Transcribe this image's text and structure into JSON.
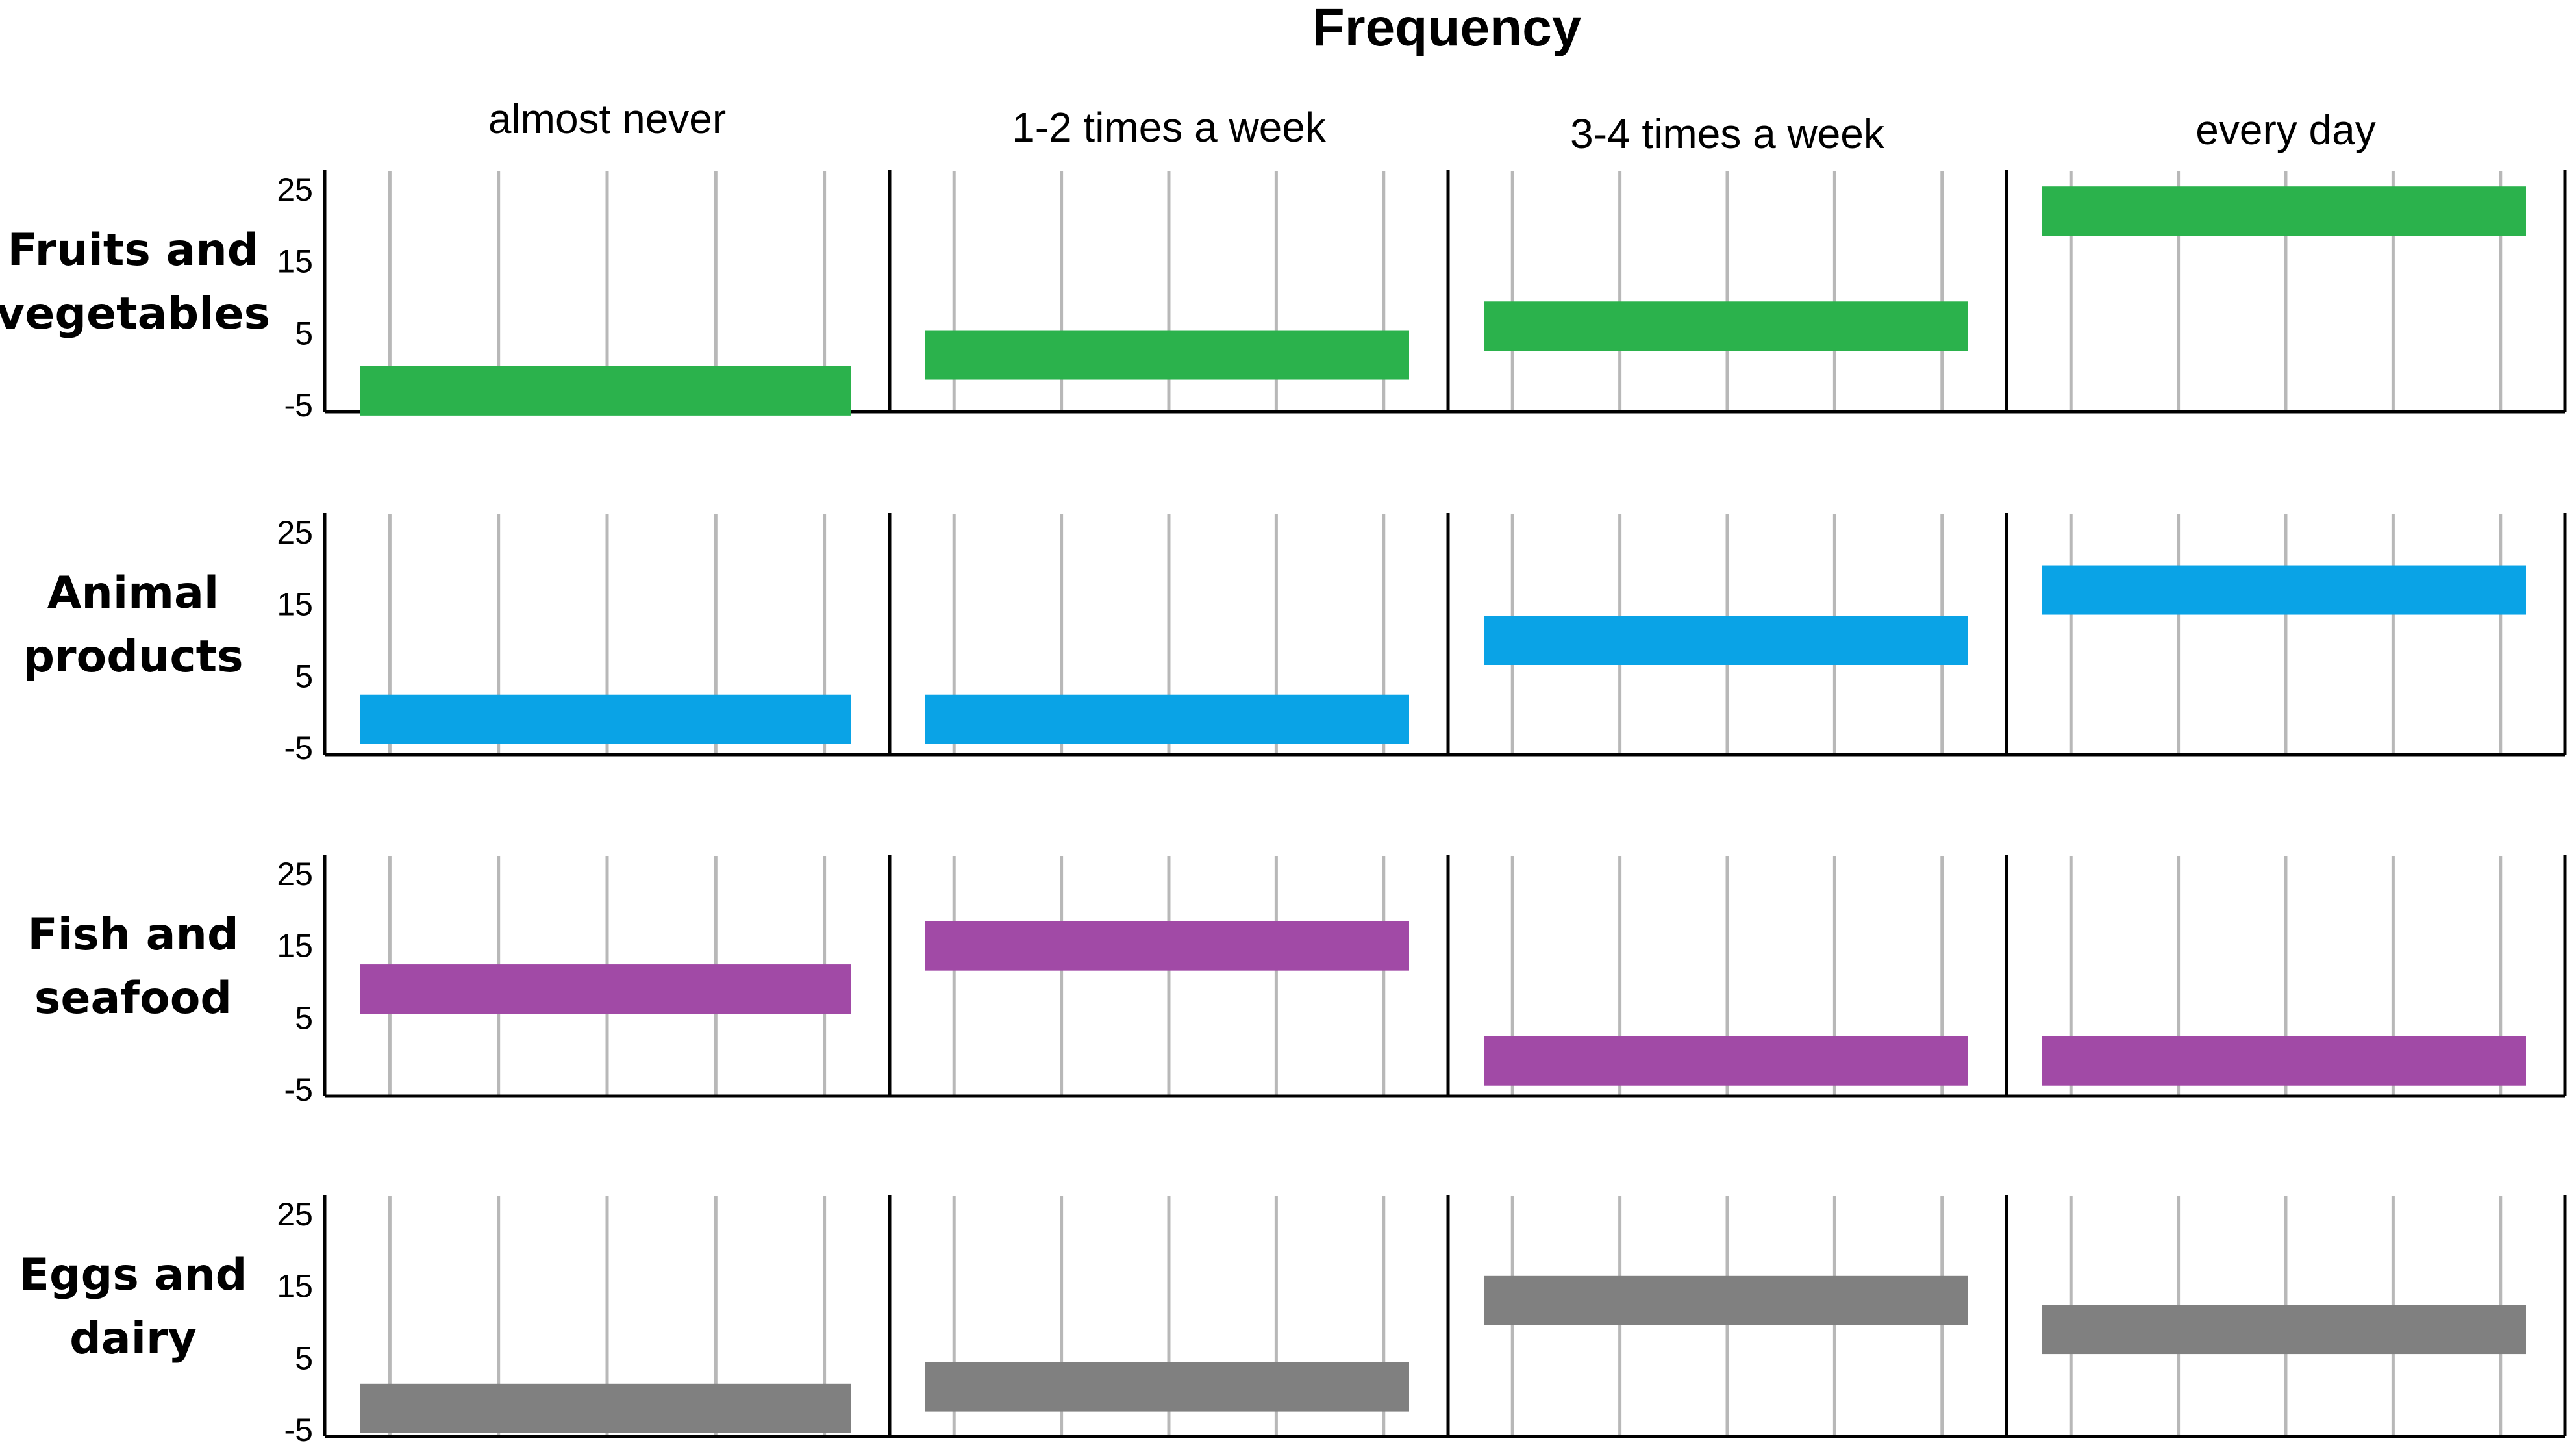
{
  "chart_data": {
    "type": "bar",
    "title": "Frequency",
    "columns": [
      "almost never",
      "1-2 times a week",
      "3-4 times a week",
      "every day"
    ],
    "rows": [
      {
        "name": "Fruits and vegetables",
        "label_lines": [
          "Fruits and",
          "vegetables"
        ],
        "color": "#2bb24c",
        "values": [
          -3,
          2,
          6,
          22
        ]
      },
      {
        "name": "Animal products",
        "label_lines": [
          "Animal",
          "products"
        ],
        "color": "#0aa3e6",
        "values": [
          -1,
          -1,
          10,
          17
        ]
      },
      {
        "name": "Fish and seafood",
        "label_lines": [
          "Fish and",
          "seafood"
        ],
        "color": "#a14aa6",
        "values": [
          9,
          15,
          -1,
          -1
        ]
      },
      {
        "name": "Eggs and dairy",
        "label_lines": [
          "Eggs and",
          "dairy"
        ],
        "color": "#808080",
        "values": [
          -2,
          1,
          13,
          9
        ]
      }
    ],
    "yticks": [
      "25",
      "15",
      "5",
      "-5"
    ],
    "yticks_values": [
      25,
      15,
      5,
      -5
    ],
    "ylim": [
      -5,
      25
    ],
    "grid": true,
    "legend": "none"
  }
}
